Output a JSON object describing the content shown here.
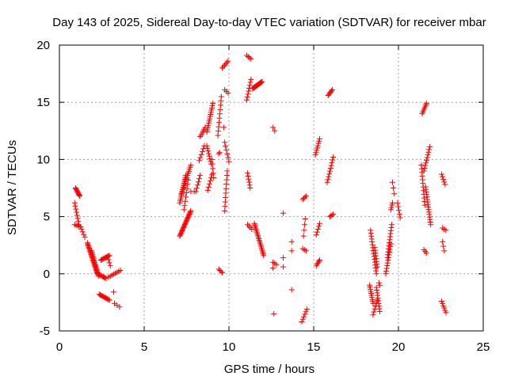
{
  "chart_data": {
    "type": "scatter",
    "title": "Day 143 of 2025, Sidereal Day-to-day VTEC variation (SDTVAR) for receiver mbar",
    "xlabel": "GPS time / hours",
    "ylabel": "SDTVAR / TECUs",
    "xlim": [
      0,
      25
    ],
    "ylim": [
      -5,
      20
    ],
    "xticks": [
      "0",
      "5",
      "10",
      "15",
      "20",
      "25"
    ],
    "yticks": [
      "-5",
      "0",
      "5",
      "10",
      "15",
      "20"
    ],
    "grid": true,
    "marker": "+",
    "color": "#ff0000",
    "segments": [
      {
        "x0": 0.95,
        "y0": 7.5,
        "x1": 1.2,
        "y1": 6.8,
        "n": 10
      },
      {
        "x0": 0.9,
        "y0": 6.2,
        "x1": 1.15,
        "y1": 4.3,
        "n": 8
      },
      {
        "x0": 0.9,
        "y0": 4.3,
        "x1": 1.25,
        "y1": 4.1,
        "n": 5
      },
      {
        "x0": 1.3,
        "y0": 3.9,
        "x1": 1.5,
        "y1": 3.2,
        "n": 4
      },
      {
        "x0": 1.65,
        "y0": 2.7,
        "x1": 2.25,
        "y1": 0.0,
        "n": 30
      },
      {
        "x0": 1.9,
        "y0": 2.0,
        "x1": 2.3,
        "y1": -0.2,
        "n": 14
      },
      {
        "x0": 2.25,
        "y0": 0.0,
        "x1": 2.75,
        "y1": -0.4,
        "n": 10
      },
      {
        "x0": 2.45,
        "y0": 1.2,
        "x1": 2.95,
        "y1": 1.6,
        "n": 10
      },
      {
        "x0": 2.85,
        "y0": 1.5,
        "x1": 3.0,
        "y1": 0.7,
        "n": 4
      },
      {
        "x0": 2.35,
        "y0": -1.8,
        "x1": 2.95,
        "y1": -2.3,
        "n": 12
      },
      {
        "x0": 2.9,
        "y0": -0.3,
        "x1": 3.6,
        "y1": 0.3,
        "n": 8
      },
      {
        "x0": 3.2,
        "y0": -1.6,
        "x1": 3.2,
        "y1": -1.6,
        "n": 1
      },
      {
        "x0": 3.25,
        "y0": -2.6,
        "x1": 3.55,
        "y1": -2.9,
        "n": 3
      },
      {
        "x0": 7.1,
        "y0": 3.3,
        "x1": 7.75,
        "y1": 5.5,
        "n": 25
      },
      {
        "x0": 7.1,
        "y0": 6.2,
        "x1": 7.45,
        "y1": 8.6,
        "n": 15
      },
      {
        "x0": 7.2,
        "y0": 7.0,
        "x1": 7.75,
        "y1": 9.5,
        "n": 15
      },
      {
        "x0": 7.35,
        "y0": 5.6,
        "x1": 7.6,
        "y1": 8.2,
        "n": 8
      },
      {
        "x0": 7.75,
        "y0": 7.2,
        "x1": 7.95,
        "y1": 7.2,
        "n": 2
      },
      {
        "x0": 8.05,
        "y0": 7.2,
        "x1": 8.3,
        "y1": 8.6,
        "n": 6
      },
      {
        "x0": 8.25,
        "y0": 9.9,
        "x1": 8.55,
        "y1": 11.2,
        "n": 6
      },
      {
        "x0": 8.3,
        "y0": 12.0,
        "x1": 8.6,
        "y1": 12.8,
        "n": 6
      },
      {
        "x0": 8.75,
        "y0": 7.3,
        "x1": 9.0,
        "y1": 8.7,
        "n": 6
      },
      {
        "x0": 8.7,
        "y0": 11.2,
        "x1": 8.95,
        "y1": 9.6,
        "n": 8
      },
      {
        "x0": 8.7,
        "y0": 12.4,
        "x1": 9.05,
        "y1": 14.9,
        "n": 14
      },
      {
        "x0": 9.0,
        "y0": 10.0,
        "x1": 9.1,
        "y1": 8.4,
        "n": 5
      },
      {
        "x0": 9.35,
        "y0": 12.1,
        "x1": 9.55,
        "y1": 15.5,
        "n": 10
      },
      {
        "x0": 9.4,
        "y0": 10.5,
        "x1": 9.45,
        "y1": 10.6,
        "n": 2
      },
      {
        "x0": 9.4,
        "y0": 0.4,
        "x1": 9.6,
        "y1": 0.1,
        "n": 4
      },
      {
        "x0": 9.7,
        "y0": 12.8,
        "x1": 9.7,
        "y1": 12.8,
        "n": 1
      },
      {
        "x0": 9.6,
        "y0": 18.0,
        "x1": 9.95,
        "y1": 18.6,
        "n": 6
      },
      {
        "x0": 9.75,
        "y0": 16.1,
        "x1": 9.95,
        "y1": 15.8,
        "n": 3
      },
      {
        "x0": 9.9,
        "y0": 9.0,
        "x1": 9.75,
        "y1": 5.5,
        "n": 10
      },
      {
        "x0": 9.75,
        "y0": 11.5,
        "x1": 10.0,
        "y1": 9.8,
        "n": 6
      },
      {
        "x0": 11.05,
        "y0": 19.1,
        "x1": 11.3,
        "y1": 18.8,
        "n": 4
      },
      {
        "x0": 11.1,
        "y0": 8.8,
        "x1": 11.25,
        "y1": 7.5,
        "n": 6
      },
      {
        "x0": 11.05,
        "y0": 15.2,
        "x1": 11.3,
        "y1": 17.0,
        "n": 8
      },
      {
        "x0": 11.4,
        "y0": 16.2,
        "x1": 11.95,
        "y1": 16.8,
        "n": 20
      },
      {
        "x0": 11.1,
        "y0": 4.3,
        "x1": 11.35,
        "y1": 3.9,
        "n": 4
      },
      {
        "x0": 11.5,
        "y0": 4.4,
        "x1": 12.05,
        "y1": 1.6,
        "n": 22
      },
      {
        "x0": 12.6,
        "y0": 12.8,
        "x1": 12.7,
        "y1": 12.5,
        "n": 2
      },
      {
        "x0": 12.6,
        "y0": 1.0,
        "x1": 12.8,
        "y1": 0.8,
        "n": 3
      },
      {
        "x0": 12.6,
        "y0": 0.5,
        "x1": 12.6,
        "y1": 0.5,
        "n": 1
      },
      {
        "x0": 12.65,
        "y0": -3.5,
        "x1": 12.65,
        "y1": -3.5,
        "n": 1
      },
      {
        "x0": 13.2,
        "y0": 5.3,
        "x1": 13.2,
        "y1": 5.3,
        "n": 1
      },
      {
        "x0": 13.2,
        "y0": 1.4,
        "x1": 13.2,
        "y1": 1.4,
        "n": 1
      },
      {
        "x0": 13.2,
        "y0": 0.6,
        "x1": 13.2,
        "y1": 0.6,
        "n": 1
      },
      {
        "x0": 13.7,
        "y0": 2.8,
        "x1": 13.7,
        "y1": 2.8,
        "n": 1
      },
      {
        "x0": 13.7,
        "y0": 2.0,
        "x1": 13.7,
        "y1": 2.0,
        "n": 1
      },
      {
        "x0": 13.7,
        "y0": -1.4,
        "x1": 13.7,
        "y1": -1.4,
        "n": 1
      },
      {
        "x0": 14.35,
        "y0": 6.5,
        "x1": 14.55,
        "y1": 6.8,
        "n": 4
      },
      {
        "x0": 14.4,
        "y0": 3.3,
        "x1": 14.5,
        "y1": 4.8,
        "n": 4
      },
      {
        "x0": 14.35,
        "y0": 2.2,
        "x1": 14.55,
        "y1": 2.0,
        "n": 3
      },
      {
        "x0": 14.3,
        "y0": -4.2,
        "x1": 14.6,
        "y1": -3.1,
        "n": 6
      },
      {
        "x0": 15.1,
        "y0": 10.4,
        "x1": 15.35,
        "y1": 11.8,
        "n": 8
      },
      {
        "x0": 15.15,
        "y0": 3.4,
        "x1": 15.35,
        "y1": 4.4,
        "n": 5
      },
      {
        "x0": 15.15,
        "y0": 0.7,
        "x1": 15.35,
        "y1": 1.2,
        "n": 5
      },
      {
        "x0": 15.85,
        "y0": 15.6,
        "x1": 16.1,
        "y1": 16.1,
        "n": 6
      },
      {
        "x0": 15.8,
        "y0": 8.0,
        "x1": 16.15,
        "y1": 10.2,
        "n": 10
      },
      {
        "x0": 15.95,
        "y0": 5.0,
        "x1": 16.15,
        "y1": 5.2,
        "n": 4
      },
      {
        "x0": 18.35,
        "y0": 3.8,
        "x1": 18.7,
        "y1": 0.0,
        "n": 16
      },
      {
        "x0": 18.3,
        "y0": -1.0,
        "x1": 18.5,
        "y1": -2.6,
        "n": 10
      },
      {
        "x0": 18.5,
        "y0": -3.6,
        "x1": 18.75,
        "y1": -2.3,
        "n": 6
      },
      {
        "x0": 18.6,
        "y0": 2.3,
        "x1": 18.75,
        "y1": 0.6,
        "n": 8
      },
      {
        "x0": 18.7,
        "y0": -1.2,
        "x1": 18.9,
        "y1": -3.3,
        "n": 10
      },
      {
        "x0": 18.85,
        "y0": -0.8,
        "x1": 18.9,
        "y1": -1.0,
        "n": 2
      },
      {
        "x0": 19.25,
        "y0": 0.0,
        "x1": 19.55,
        "y1": 2.6,
        "n": 12
      },
      {
        "x0": 19.35,
        "y0": 1.4,
        "x1": 19.6,
        "y1": 4.3,
        "n": 12
      },
      {
        "x0": 19.55,
        "y0": 5.6,
        "x1": 19.65,
        "y1": 6.2,
        "n": 4
      },
      {
        "x0": 19.65,
        "y0": 8.0,
        "x1": 19.75,
        "y1": 7.0,
        "n": 3
      },
      {
        "x0": 19.95,
        "y0": 6.2,
        "x1": 20.1,
        "y1": 4.9,
        "n": 5
      },
      {
        "x0": 21.4,
        "y0": 14.0,
        "x1": 21.65,
        "y1": 14.9,
        "n": 7
      },
      {
        "x0": 21.35,
        "y0": 9.5,
        "x1": 21.55,
        "y1": 6.0,
        "n": 12
      },
      {
        "x0": 21.5,
        "y0": 9.0,
        "x1": 21.85,
        "y1": 11.1,
        "n": 10
      },
      {
        "x0": 21.6,
        "y0": 7.6,
        "x1": 21.9,
        "y1": 4.3,
        "n": 16
      },
      {
        "x0": 21.5,
        "y0": 2.1,
        "x1": 21.65,
        "y1": 1.8,
        "n": 3
      },
      {
        "x0": 22.55,
        "y0": 8.7,
        "x1": 22.75,
        "y1": 7.8,
        "n": 5
      },
      {
        "x0": 22.6,
        "y0": 4.0,
        "x1": 22.8,
        "y1": 3.8,
        "n": 3
      },
      {
        "x0": 22.6,
        "y0": 2.8,
        "x1": 22.7,
        "y1": 2.0,
        "n": 3
      },
      {
        "x0": 22.55,
        "y0": -2.4,
        "x1": 22.8,
        "y1": -3.4,
        "n": 6
      }
    ]
  }
}
